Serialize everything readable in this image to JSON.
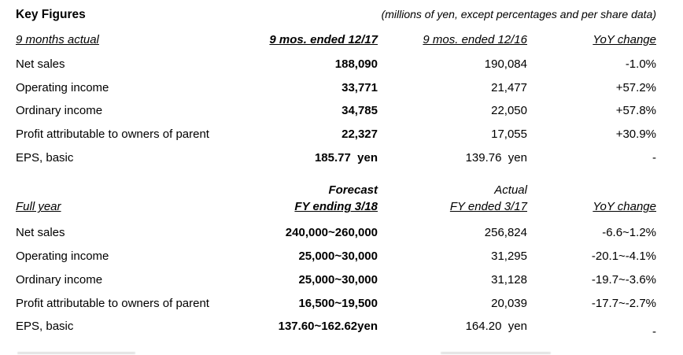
{
  "header": {
    "title": "Key Figures",
    "unit_note": "(millions of yen, except percentages and per share data)"
  },
  "nine_months": {
    "section_label": "9 months actual",
    "col_current": "9 mos. ended 12/17",
    "col_prior": "9 mos. ended 12/16",
    "col_yoy": "YoY change",
    "rows": [
      {
        "label": "Net sales",
        "current": "188,090",
        "prior": "190,084",
        "yoy": "-1.0%"
      },
      {
        "label": "Operating income",
        "current": "33,771",
        "prior": "21,477",
        "yoy": "+57.2%"
      },
      {
        "label": "Ordinary income",
        "current": "34,785",
        "prior": "22,050",
        "yoy": "+57.8%"
      },
      {
        "label": "Profit attributable to owners of parent",
        "current": "22,327",
        "prior": "17,055",
        "yoy": "+30.9%"
      },
      {
        "label": "EPS, basic",
        "current": "185.77  yen",
        "prior": "139.76  yen",
        "yoy": "-"
      }
    ]
  },
  "full_year": {
    "section_label": "Full year",
    "super_current": "Forecast",
    "super_prior": "Actual",
    "col_current": "FY ending 3/18",
    "col_prior": "FY ended 3/17",
    "col_yoy": "YoY change",
    "rows": [
      {
        "label": "Net sales",
        "current": "240,000~260,000",
        "prior": "256,824",
        "yoy": "-6.6~1.2%"
      },
      {
        "label": "Operating income",
        "current": "25,000~30,000",
        "prior": "31,295",
        "yoy": "-20.1~-4.1%"
      },
      {
        "label": "Ordinary income",
        "current": "25,000~30,000",
        "prior": "31,128",
        "yoy": "-19.7~-3.6%"
      },
      {
        "label": "Profit attributable to owners of parent",
        "current": "16,500~19,500",
        "prior": "20,039",
        "yoy": "-17.7~-2.7%"
      },
      {
        "label": "EPS, basic",
        "current": "137.60~162.62yen",
        "prior": "164.20  yen",
        "yoy": "-"
      }
    ]
  }
}
